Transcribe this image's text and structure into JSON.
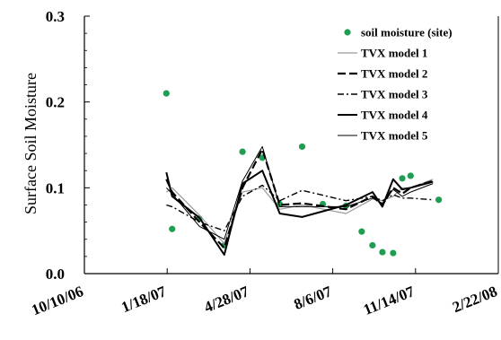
{
  "chart_data": {
    "type": "line",
    "ylabel": "Surface Soil Moisture",
    "xlabel": "",
    "xlim": [
      "10/10/06",
      "2/22/08"
    ],
    "ylim": [
      0,
      0.3
    ],
    "x_ticks": [
      "10/10/06",
      "1/18/07",
      "4/28/07",
      "8/6/07",
      "11/14/07",
      "2/22/08"
    ],
    "y_ticks": [
      "0.0",
      "0.1",
      "0.2",
      "0.3"
    ],
    "legend_position": "top-right",
    "series": [
      {
        "name": "soil moisture (site)",
        "kind": "points",
        "color": "#1f9e52",
        "x": [
          "1/17/07",
          "1/24/07",
          "2/26/07",
          "3/28/07",
          "4/19/07",
          "5/13/07",
          "6/3/07",
          "6/30/07",
          "7/25/07",
          "8/22/07",
          "9/10/07",
          "9/23/07",
          "10/5/07",
          "10/18/07",
          "10/29/07",
          "11/8/07",
          "12/12/07"
        ],
        "y": [
          0.21,
          0.052,
          0.064,
          0.033,
          0.142,
          0.135,
          0.081,
          0.148,
          0.081,
          0.079,
          0.049,
          0.033,
          0.025,
          0.024,
          0.111,
          0.114,
          0.086
        ]
      },
      {
        "name": "TVX model 1",
        "kind": "line",
        "color": "#9a9a9a",
        "width": 1.2,
        "dash": "",
        "x": [
          "1/17/07",
          "1/24/07",
          "2/26/07",
          "3/28/07",
          "4/19/07",
          "5/13/07",
          "6/3/07",
          "6/30/07",
          "8/22/07",
          "9/23/07",
          "10/5/07",
          "10/18/07",
          "10/29/07",
          "11/8/07",
          "12/5/07"
        ],
        "y": [
          0.095,
          0.1,
          0.068,
          0.035,
          0.095,
          0.1,
          0.075,
          0.08,
          0.07,
          0.087,
          0.085,
          0.09,
          0.1,
          0.1,
          0.11
        ]
      },
      {
        "name": "TVX model 2",
        "kind": "line",
        "color": "#000000",
        "width": 2.2,
        "dash": "9 4",
        "x": [
          "1/17/07",
          "1/24/07",
          "2/26/07",
          "3/28/07",
          "4/19/07",
          "5/13/07",
          "6/3/07",
          "6/30/07",
          "8/22/07",
          "9/23/07",
          "10/5/07",
          "10/18/07",
          "10/29/07",
          "11/8/07",
          "12/5/07"
        ],
        "y": [
          0.11,
          0.095,
          0.06,
          0.03,
          0.1,
          0.145,
          0.08,
          0.082,
          0.075,
          0.09,
          0.08,
          0.1,
          0.093,
          0.1,
          0.108
        ]
      },
      {
        "name": "TVX model 3",
        "kind": "line",
        "color": "#000000",
        "width": 1.4,
        "dash": "7 3 2 3",
        "x": [
          "1/17/07",
          "1/24/07",
          "2/26/07",
          "3/28/07",
          "4/19/07",
          "5/13/07",
          "6/3/07",
          "6/30/07",
          "8/22/07",
          "9/23/07",
          "10/5/07",
          "10/18/07",
          "10/29/07",
          "11/8/07",
          "12/5/07"
        ],
        "y": [
          0.08,
          0.078,
          0.06,
          0.05,
          0.09,
          0.103,
          0.085,
          0.097,
          0.085,
          0.09,
          0.085,
          0.092,
          0.088,
          0.088,
          0.086
        ]
      },
      {
        "name": "TVX model 4",
        "kind": "line",
        "color": "#000000",
        "width": 2.0,
        "dash": "",
        "x": [
          "1/17/07",
          "1/24/07",
          "2/26/07",
          "3/28/07",
          "4/19/07",
          "5/13/07",
          "6/3/07",
          "6/30/07",
          "8/22/07",
          "9/23/07",
          "10/5/07",
          "10/18/07",
          "10/29/07",
          "11/8/07",
          "12/5/07"
        ],
        "y": [
          0.118,
          0.09,
          0.065,
          0.022,
          0.105,
          0.12,
          0.07,
          0.066,
          0.08,
          0.095,
          0.078,
          0.11,
          0.098,
          0.1,
          0.107
        ]
      },
      {
        "name": "TVX model 5",
        "kind": "line",
        "color": "#000000",
        "width": 1.0,
        "dash": "",
        "x": [
          "1/17/07",
          "1/24/07",
          "2/26/07",
          "3/28/07",
          "4/19/07",
          "5/13/07",
          "6/3/07",
          "6/30/07",
          "8/22/07",
          "9/23/07",
          "10/5/07",
          "10/18/07",
          "10/29/07",
          "11/8/07",
          "12/5/07"
        ],
        "y": [
          0.1,
          0.093,
          0.055,
          0.04,
          0.108,
          0.148,
          0.078,
          0.078,
          0.078,
          0.088,
          0.082,
          0.098,
          0.09,
          0.095,
          0.105
        ]
      }
    ]
  }
}
